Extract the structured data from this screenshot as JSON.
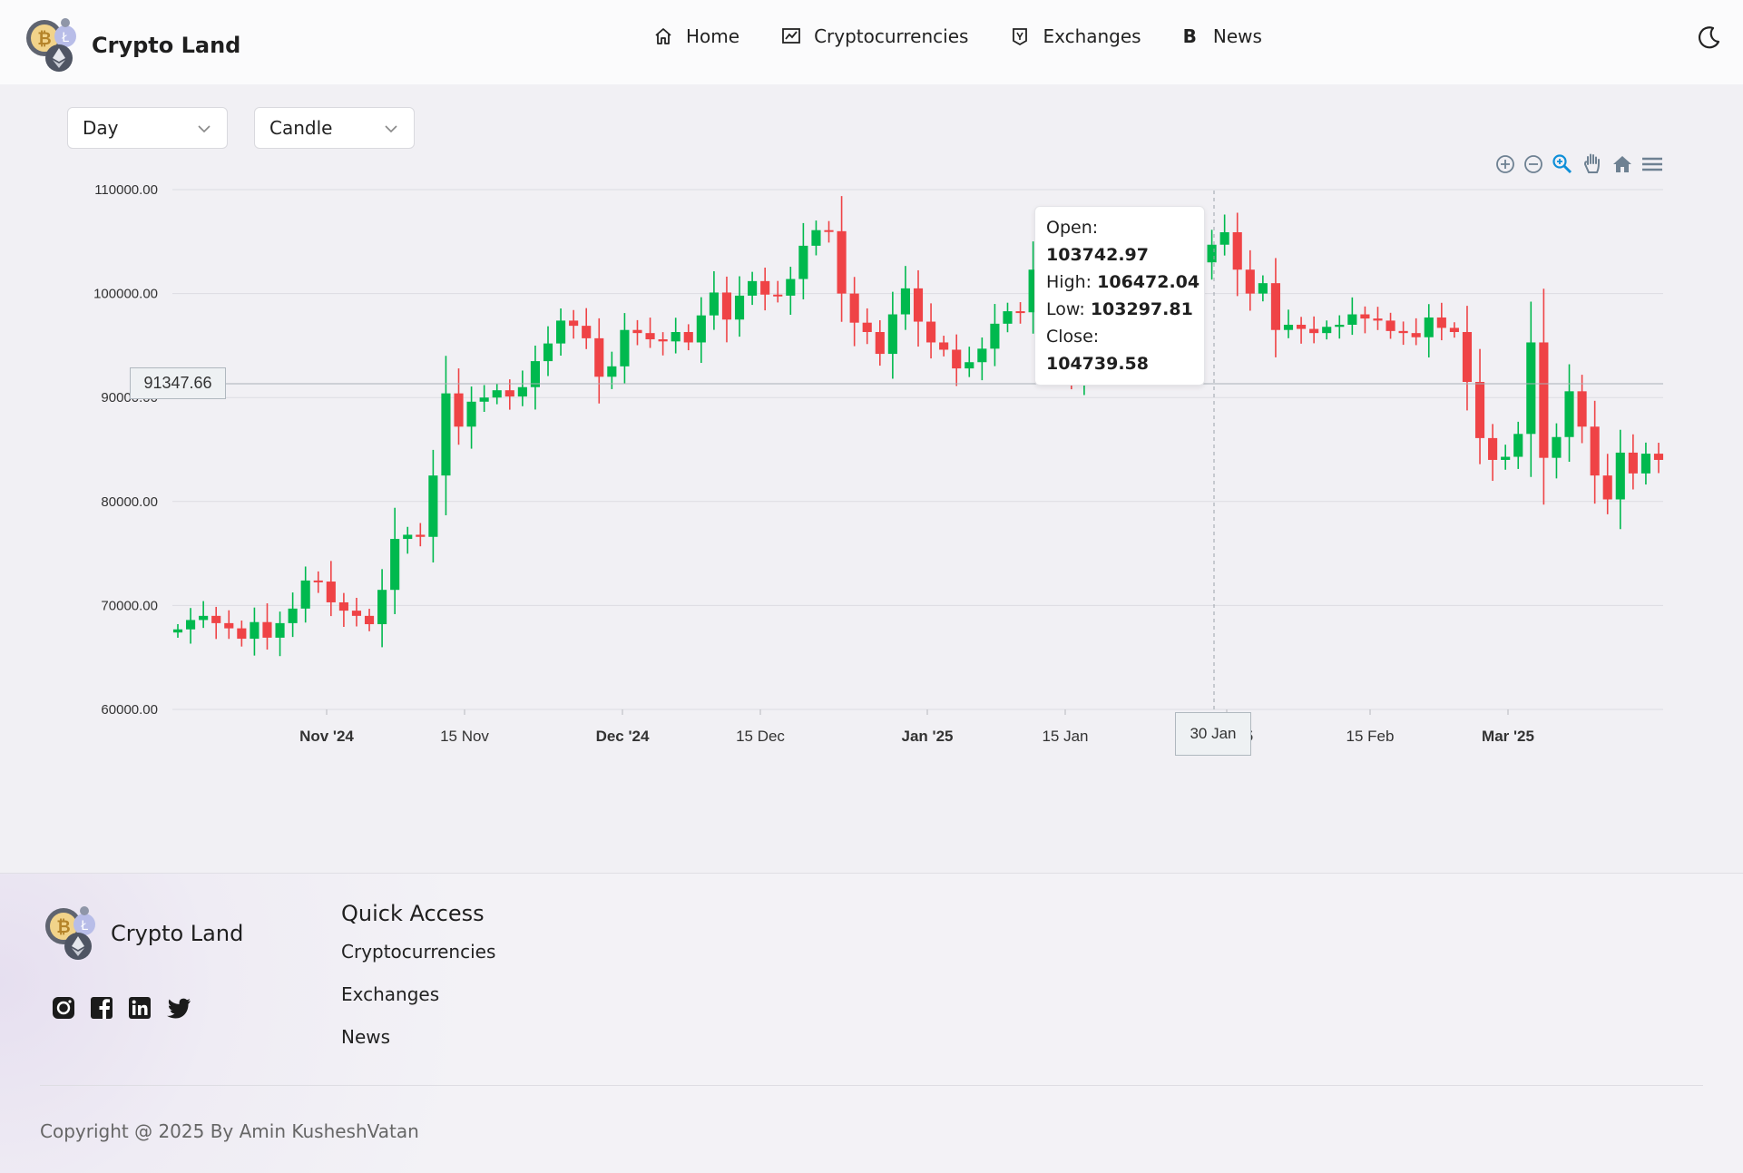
{
  "header": {
    "brand": "Crypto Land",
    "nav": [
      {
        "label": "Home",
        "icon": "home-icon"
      },
      {
        "label": "Cryptocurrencies",
        "icon": "chart-line-icon"
      },
      {
        "label": "Exchanges",
        "icon": "exchange-icon"
      },
      {
        "label": "News",
        "icon": "news-icon",
        "glyph": "B"
      }
    ],
    "theme_icon": "moon-icon"
  },
  "controls": {
    "interval": "Day",
    "chart_type": "Candle"
  },
  "tooltip": {
    "open_label": "Open:",
    "open": "103742.97",
    "high_label": "High:",
    "high": "106472.04",
    "low_label": "Low:",
    "low": "103297.81",
    "close_label": "Close:",
    "close": "104739.58"
  },
  "crosshair": {
    "x_label": "30 Jan",
    "y_label": "91347.66"
  },
  "toolbar": [
    "zoom-in-icon",
    "zoom-out-icon",
    "zoom-select-icon",
    "pan-hand-icon",
    "reset-home-icon",
    "menu-icon"
  ],
  "colors": {
    "up": "#00b94e",
    "down": "#ef4346",
    "grid": "#dcdce2"
  },
  "chart_data": {
    "type": "candlestick",
    "ylim": [
      60000,
      110000
    ],
    "y_ticks": [
      "110000.00",
      "100000.00",
      "90000.00",
      "80000.00",
      "70000.00",
      "60000.00"
    ],
    "x_ticks": [
      {
        "label": "Nov '24",
        "major": true
      },
      {
        "label": "15 Nov",
        "major": false
      },
      {
        "label": "Dec '24",
        "major": true
      },
      {
        "label": "15 Dec",
        "major": false
      },
      {
        "label": "Jan '25",
        "major": true
      },
      {
        "label": "15 Jan",
        "major": false
      },
      {
        "label": "Feb '25",
        "major": true
      },
      {
        "label": "15 Feb",
        "major": false
      },
      {
        "label": "Mar '25",
        "major": true
      }
    ],
    "close_series": [
      67700,
      68600,
      69000,
      68300,
      67800,
      66800,
      68400,
      66900,
      68300,
      69700,
      72400,
      72300,
      70300,
      69500,
      69000,
      68200,
      71500,
      76400,
      76800,
      76600,
      82500,
      90400,
      87200,
      89600,
      90000,
      90700,
      90100,
      91000,
      93500,
      95200,
      97400,
      96900,
      95700,
      92000,
      93000,
      96500,
      96200,
      95600,
      95400,
      96300,
      95300,
      97900,
      100100,
      97500,
      99800,
      101200,
      99900,
      99800,
      101400,
      104600,
      106100,
      106000,
      100000,
      97200,
      96300,
      94200,
      98000,
      100500,
      97300,
      95300,
      94600,
      92800,
      93400,
      94700,
      97100,
      98300,
      98200,
      102300,
      96700,
      94300,
      92000,
      94000,
      94300,
      94300,
      94600,
      97500,
      100000,
      101000,
      101100,
      102000,
      103000,
      104700,
      105900,
      102300,
      100000,
      101000,
      96500,
      97000,
      96600,
      96200,
      96800,
      97000,
      98000,
      97600,
      97400,
      96400,
      96200,
      95800,
      97700,
      96700,
      96300,
      91500,
      86100,
      84000,
      84300,
      86500,
      95300,
      84200,
      86200,
      90600,
      87200,
      82500,
      80200,
      84700,
      82700,
      84600,
      84000
    ],
    "highlighted_candle": {
      "date": "30 Jan",
      "open": 103742.97,
      "high": 106472.04,
      "low": 103297.81,
      "close": 104739.58
    },
    "crosshair_price": 91347.66
  },
  "footer": {
    "brand": "Crypto Land",
    "social": [
      "instagram-icon",
      "facebook-icon",
      "linkedin-icon",
      "twitter-icon"
    ],
    "quick_access_title": "Quick Access",
    "links": [
      "Cryptocurrencies",
      "Exchanges",
      "News"
    ],
    "copyright": "Copyright @ 2025 By Amin KusheshVatan"
  }
}
